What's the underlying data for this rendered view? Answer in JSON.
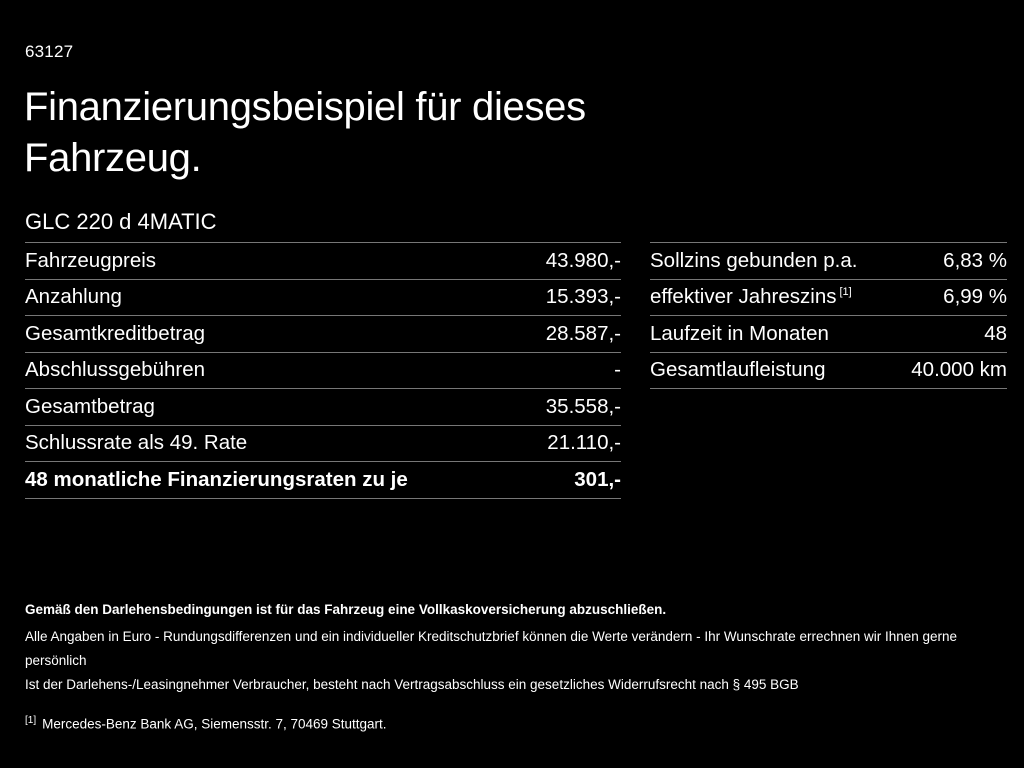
{
  "header": {
    "doc_number": "63127",
    "title_line1": "Finanzierungsbeispiel für dieses",
    "title_line2": "Fahrzeug.",
    "model": "GLC 220 d 4MATIC"
  },
  "left_table": {
    "rows": [
      {
        "label": "Fahrzeugpreis",
        "value": "43.980,-"
      },
      {
        "label": "Anzahlung",
        "value": "15.393,-"
      },
      {
        "label": "Gesamtkreditbetrag",
        "value": "28.587,-"
      },
      {
        "label": "Abschlussgebühren",
        "value": "-"
      },
      {
        "label": "Gesamtbetrag",
        "value": "35.558,-"
      },
      {
        "label": "Schlussrate als 49. Rate",
        "value": "21.110,-"
      },
      {
        "label": "48 monatliche Finanzierungsraten zu je",
        "value": "301,-"
      }
    ]
  },
  "right_table": {
    "rows": [
      {
        "label": "Sollzins gebunden p.a.",
        "sup": "",
        "value": "6,83 %"
      },
      {
        "label": "effektiver Jahreszins",
        "sup": "[1]",
        "value": "6,99 %"
      },
      {
        "label": "Laufzeit in Monaten",
        "sup": "",
        "value": "48"
      },
      {
        "label": "Gesamtlaufleistung",
        "sup": "",
        "value": "40.000 km"
      }
    ]
  },
  "footer": {
    "line1": "Gemäß den Darlehensbedingungen ist für das Fahrzeug eine Vollkaskoversicherung abzuschließen.",
    "line2": "Alle Angaben in Euro - Rundungsdifferenzen und ein individueller Kreditschutzbrief können die Werte verändern - Ihr Wunschrate errechnen wir Ihnen gerne persönlich",
    "line3": "Ist der Darlehens-/Leasingnehmer Verbraucher, besteht nach Vertragsabschluss ein gesetzliches Widerrufsrecht nach § 495 BGB",
    "footnote_ref": "[1]",
    "footnote_text": "Mercedes-Benz Bank AG, Siemensstr. 7, 70469 Stuttgart."
  },
  "colors": {
    "background": "#000000",
    "text": "#ffffff",
    "divider": "#777777"
  }
}
